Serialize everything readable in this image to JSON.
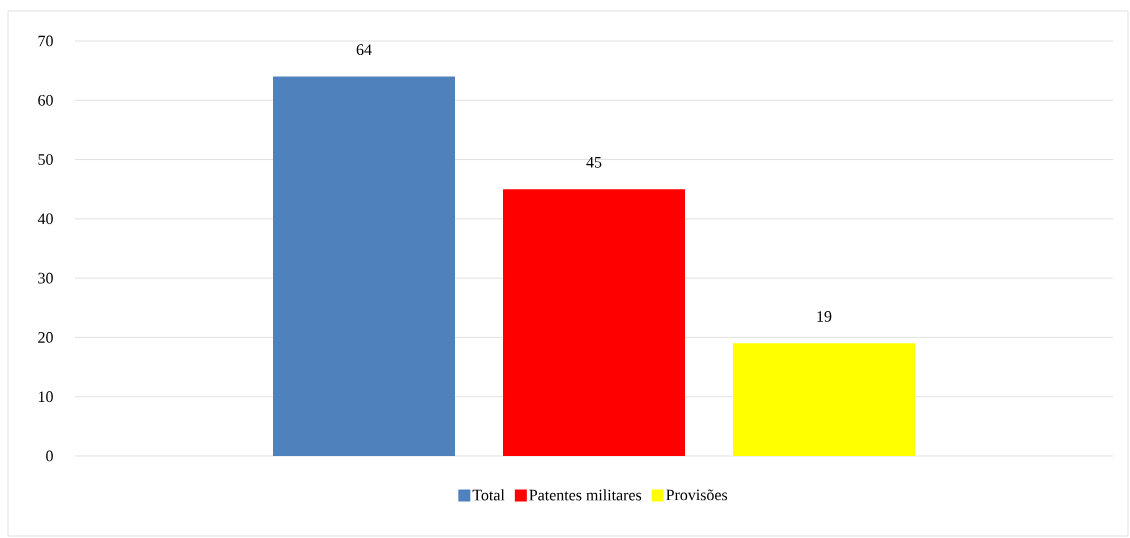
{
  "chart_data": {
    "type": "bar",
    "categories": [
      null
    ],
    "series": [
      {
        "name": "Total",
        "color": "#4f81bd",
        "values": [
          64
        ]
      },
      {
        "name": "Patentes militares",
        "color": "#ff0000",
        "values": [
          45
        ]
      },
      {
        "name": "Provisões",
        "color": "#ffff00",
        "values": [
          19
        ]
      }
    ],
    "ylim": [
      0,
      70
    ],
    "yticks": [
      0,
      10,
      20,
      30,
      40,
      50,
      60,
      70
    ],
    "grid": "y",
    "legend": "bottom",
    "data_labels": true
  }
}
